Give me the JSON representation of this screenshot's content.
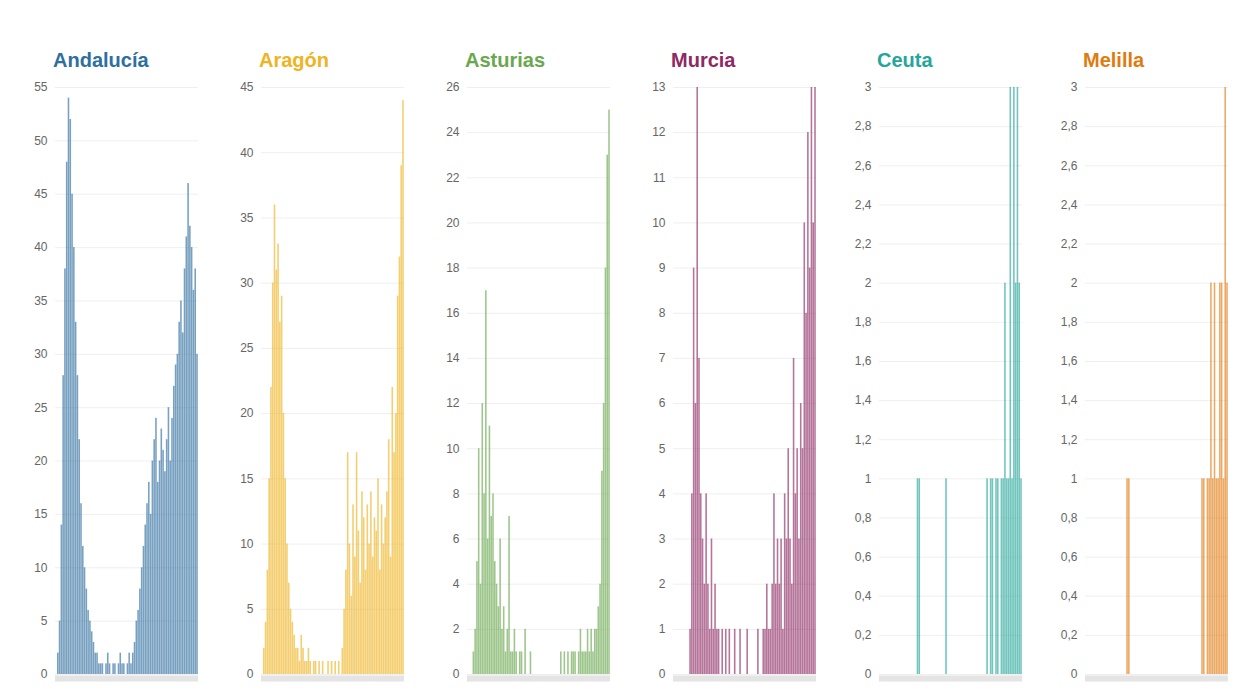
{
  "chart_data": [
    {
      "type": "bar",
      "title": "Andalucía",
      "color": "#2f6f9f",
      "grid": true,
      "tick_labels": "y",
      "ylim": [
        0,
        55
      ],
      "yticks": [
        0,
        5,
        10,
        15,
        20,
        25,
        30,
        35,
        40,
        45,
        50,
        55
      ],
      "categories": [
        null,
        null,
        null,
        null,
        null,
        null,
        null,
        null,
        null,
        null,
        null,
        null,
        null,
        null,
        null,
        null,
        null,
        null,
        null,
        null,
        null,
        null,
        null,
        null,
        null,
        null,
        null,
        null,
        null,
        null,
        null,
        null,
        null,
        null,
        null,
        null,
        null,
        null,
        null,
        null,
        null,
        null,
        null,
        null,
        null,
        null,
        null,
        null,
        null,
        null,
        null,
        null,
        null,
        null,
        null,
        null,
        null,
        null,
        null,
        null,
        null,
        null,
        null,
        null,
        null,
        null,
        null,
        null,
        null,
        null,
        null,
        null,
        null,
        null,
        null,
        null,
        null,
        null,
        null,
        null
      ],
      "values": [
        0,
        2,
        5,
        14,
        28,
        38,
        48,
        54,
        52,
        45,
        40,
        33,
        28,
        22,
        16,
        12,
        10,
        8,
        6,
        5,
        4,
        3,
        2,
        2,
        1,
        1,
        1,
        0,
        1,
        2,
        1,
        0,
        1,
        1,
        0,
        1,
        2,
        1,
        1,
        0,
        1,
        2,
        1,
        2,
        3,
        5,
        6,
        8,
        10,
        12,
        14,
        16,
        18,
        15,
        20,
        22,
        24,
        18,
        20,
        23,
        21,
        19,
        22,
        25,
        20,
        24,
        27,
        29,
        30,
        33,
        35,
        32,
        38,
        41,
        46,
        42,
        40,
        36,
        38,
        30
      ]
    },
    {
      "type": "bar",
      "title": "Aragón",
      "color": "#eeb422",
      "grid": true,
      "tick_labels": "y",
      "ylim": [
        0,
        45
      ],
      "yticks": [
        0,
        5,
        10,
        15,
        20,
        25,
        30,
        35,
        40,
        45
      ],
      "categories": [
        null,
        null,
        null,
        null,
        null,
        null,
        null,
        null,
        null,
        null,
        null,
        null,
        null,
        null,
        null,
        null,
        null,
        null,
        null,
        null,
        null,
        null,
        null,
        null,
        null,
        null,
        null,
        null,
        null,
        null,
        null,
        null,
        null,
        null,
        null,
        null,
        null,
        null,
        null,
        null,
        null,
        null,
        null,
        null,
        null,
        null,
        null,
        null,
        null,
        null,
        null,
        null,
        null,
        null,
        null,
        null,
        null,
        null,
        null,
        null,
        null,
        null,
        null,
        null,
        null,
        null,
        null,
        null,
        null,
        null,
        null,
        null,
        null,
        null,
        null,
        null,
        null,
        null,
        null,
        null
      ],
      "values": [
        0,
        2,
        4,
        8,
        15,
        22,
        30,
        36,
        31,
        33,
        27,
        29,
        20,
        15,
        10,
        7,
        5,
        4,
        3,
        2,
        2,
        1,
        3,
        2,
        1,
        1,
        2,
        1,
        0,
        1,
        1,
        0,
        1,
        0,
        1,
        0,
        0,
        1,
        0,
        1,
        0,
        1,
        0,
        1,
        0,
        2,
        5,
        8,
        17,
        10,
        6,
        13,
        9,
        17,
        11,
        7,
        14,
        12,
        8,
        13,
        10,
        14,
        9,
        12,
        11,
        15,
        8,
        13,
        10,
        12,
        14,
        18,
        9,
        22,
        17,
        20,
        29,
        32,
        39,
        44
      ]
    },
    {
      "type": "bar",
      "title": "Asturias",
      "color": "#6aa84f",
      "grid": true,
      "tick_labels": "y",
      "ylim": [
        0,
        26
      ],
      "yticks": [
        0,
        2,
        4,
        6,
        8,
        10,
        12,
        14,
        16,
        18,
        20,
        22,
        24,
        26
      ],
      "categories": [
        null,
        null,
        null,
        null,
        null,
        null,
        null,
        null,
        null,
        null,
        null,
        null,
        null,
        null,
        null,
        null,
        null,
        null,
        null,
        null,
        null,
        null,
        null,
        null,
        null,
        null,
        null,
        null,
        null,
        null,
        null,
        null,
        null,
        null,
        null,
        null,
        null,
        null,
        null,
        null,
        null,
        null,
        null,
        null,
        null,
        null,
        null,
        null,
        null,
        null,
        null,
        null,
        null,
        null,
        null,
        null,
        null,
        null,
        null,
        null,
        null,
        null,
        null,
        null,
        null,
        null,
        null,
        null,
        null,
        null,
        null,
        null,
        null,
        null,
        null,
        null,
        null,
        null,
        null,
        null
      ],
      "values": [
        0,
        0,
        0,
        1,
        2,
        5,
        10,
        4,
        12,
        8,
        17,
        6,
        11,
        7,
        8,
        5,
        4,
        3,
        6,
        2,
        3,
        1,
        2,
        7,
        1,
        1,
        2,
        1,
        0,
        1,
        1,
        0,
        2,
        0,
        0,
        1,
        0,
        0,
        0,
        0,
        0,
        0,
        0,
        0,
        0,
        0,
        0,
        0,
        0,
        0,
        0,
        0,
        1,
        0,
        1,
        0,
        1,
        0,
        1,
        1,
        1,
        0,
        1,
        2,
        1,
        1,
        1,
        2,
        1,
        2,
        1,
        2,
        2,
        3,
        4,
        9,
        12,
        18,
        23,
        25
      ]
    },
    {
      "type": "bar",
      "title": "Murcia",
      "color": "#8e2a63",
      "grid": true,
      "tick_labels": "y",
      "ylim": [
        0,
        13
      ],
      "yticks": [
        0,
        1,
        2,
        3,
        4,
        5,
        6,
        7,
        8,
        9,
        10,
        11,
        12,
        13
      ],
      "categories": [
        null,
        null,
        null,
        null,
        null,
        null,
        null,
        null,
        null,
        null,
        null,
        null,
        null,
        null,
        null,
        null,
        null,
        null,
        null,
        null,
        null,
        null,
        null,
        null,
        null,
        null,
        null,
        null,
        null,
        null,
        null,
        null,
        null,
        null,
        null,
        null,
        null,
        null,
        null,
        null,
        null,
        null,
        null,
        null,
        null,
        null,
        null,
        null,
        null,
        null,
        null,
        null,
        null,
        null,
        null,
        null,
        null,
        null,
        null,
        null,
        null,
        null,
        null,
        null,
        null,
        null,
        null,
        null,
        null,
        null,
        null,
        null,
        null,
        null,
        null,
        null,
        null,
        null,
        null,
        null
      ],
      "values": [
        0,
        0,
        0,
        0,
        0,
        0,
        0,
        0,
        0,
        1,
        4,
        9,
        6,
        13,
        7,
        4,
        3,
        2,
        4,
        2,
        1,
        3,
        1,
        2,
        1,
        1,
        0,
        1,
        0,
        1,
        0,
        1,
        0,
        0,
        1,
        0,
        0,
        1,
        0,
        0,
        0,
        1,
        0,
        0,
        0,
        0,
        0,
        1,
        0,
        0,
        1,
        1,
        2,
        1,
        1,
        2,
        4,
        2,
        3,
        2,
        3,
        1,
        4,
        3,
        5,
        3,
        2,
        7,
        4,
        5,
        3,
        6,
        5,
        10,
        8,
        12,
        9,
        13,
        10,
        13
      ]
    },
    {
      "type": "bar",
      "title": "Ceuta",
      "color": "#26a69a",
      "grid": true,
      "tick_labels": "y",
      "ylim": [
        0,
        3
      ],
      "yticks": [
        0,
        {
          "value": 0.2,
          "label": "0,2"
        },
        {
          "value": 0.4,
          "label": "0,4"
        },
        {
          "value": 0.6,
          "label": "0,6"
        },
        {
          "value": 0.8,
          "label": "0,8"
        },
        1,
        {
          "value": 1.2,
          "label": "1,2"
        },
        {
          "value": 1.4,
          "label": "1,4"
        },
        {
          "value": 1.6,
          "label": "1,6"
        },
        {
          "value": 1.8,
          "label": "1,8"
        },
        2,
        {
          "value": 2.2,
          "label": "2,2"
        },
        {
          "value": 2.4,
          "label": "2,4"
        },
        {
          "value": 2.6,
          "label": "2,6"
        },
        {
          "value": 2.8,
          "label": "2,8"
        },
        3
      ],
      "categories": [
        null,
        null,
        null,
        null,
        null,
        null,
        null,
        null,
        null,
        null,
        null,
        null,
        null,
        null,
        null,
        null,
        null,
        null,
        null,
        null,
        null,
        null,
        null,
        null,
        null,
        null,
        null,
        null,
        null,
        null,
        null,
        null,
        null,
        null,
        null,
        null,
        null,
        null,
        null,
        null,
        null,
        null,
        null,
        null,
        null,
        null,
        null,
        null,
        null,
        null,
        null,
        null,
        null,
        null,
        null,
        null,
        null,
        null,
        null,
        null,
        null,
        null,
        null,
        null,
        null,
        null,
        null,
        null,
        null,
        null,
        null,
        null,
        null,
        null,
        null,
        null,
        null,
        null,
        null,
        null
      ],
      "values": [
        0,
        0,
        0,
        0,
        0,
        0,
        0,
        0,
        0,
        0,
        0,
        0,
        0,
        0,
        0,
        0,
        0,
        0,
        0,
        0,
        0,
        1,
        1,
        0,
        0,
        0,
        0,
        0,
        0,
        0,
        0,
        0,
        0,
        0,
        0,
        0,
        0,
        1,
        0,
        0,
        0,
        0,
        0,
        0,
        0,
        0,
        0,
        0,
        0,
        0,
        0,
        0,
        0,
        0,
        0,
        0,
        0,
        0,
        0,
        0,
        1,
        0,
        1,
        1,
        0,
        1,
        1,
        0,
        1,
        1,
        2,
        1,
        1,
        3,
        1,
        3,
        2,
        3,
        2,
        1
      ]
    },
    {
      "type": "bar",
      "title": "Melilla",
      "color": "#e07b10",
      "grid": true,
      "tick_labels": "y",
      "ylim": [
        0,
        3
      ],
      "yticks": [
        0,
        {
          "value": 0.2,
          "label": "0,2"
        },
        {
          "value": 0.4,
          "label": "0,4"
        },
        {
          "value": 0.6,
          "label": "0,6"
        },
        {
          "value": 0.8,
          "label": "0,8"
        },
        1,
        {
          "value": 1.2,
          "label": "1,2"
        },
        {
          "value": 1.4,
          "label": "1,4"
        },
        {
          "value": 1.6,
          "label": "1,6"
        },
        {
          "value": 1.8,
          "label": "1,8"
        },
        2,
        {
          "value": 2.2,
          "label": "2,2"
        },
        {
          "value": 2.4,
          "label": "2,4"
        },
        {
          "value": 2.6,
          "label": "2,6"
        },
        {
          "value": 2.8,
          "label": "2,8"
        },
        3
      ],
      "categories": [
        null,
        null,
        null,
        null,
        null,
        null,
        null,
        null,
        null,
        null,
        null,
        null,
        null,
        null,
        null,
        null,
        null,
        null,
        null,
        null,
        null,
        null,
        null,
        null,
        null,
        null,
        null,
        null,
        null,
        null,
        null,
        null,
        null,
        null,
        null,
        null,
        null,
        null,
        null,
        null,
        null,
        null,
        null,
        null,
        null,
        null,
        null,
        null,
        null,
        null,
        null,
        null,
        null,
        null,
        null,
        null,
        null,
        null,
        null,
        null,
        null,
        null,
        null,
        null,
        null,
        null,
        null,
        null,
        null,
        null,
        null,
        null,
        null,
        null,
        null,
        null,
        null,
        null,
        null,
        null
      ],
      "values": [
        0,
        0,
        0,
        0,
        0,
        0,
        0,
        0,
        0,
        0,
        0,
        0,
        0,
        0,
        0,
        0,
        0,
        0,
        0,
        0,
        0,
        0,
        0,
        1,
        1,
        0,
        0,
        0,
        0,
        0,
        0,
        0,
        0,
        0,
        0,
        0,
        0,
        0,
        0,
        0,
        0,
        0,
        0,
        0,
        0,
        0,
        0,
        0,
        0,
        0,
        0,
        0,
        0,
        0,
        0,
        0,
        0,
        0,
        0,
        0,
        0,
        0,
        0,
        0,
        0,
        1,
        1,
        0,
        1,
        1,
        2,
        1,
        2,
        1,
        1,
        2,
        2,
        1,
        3,
        2
      ]
    }
  ]
}
